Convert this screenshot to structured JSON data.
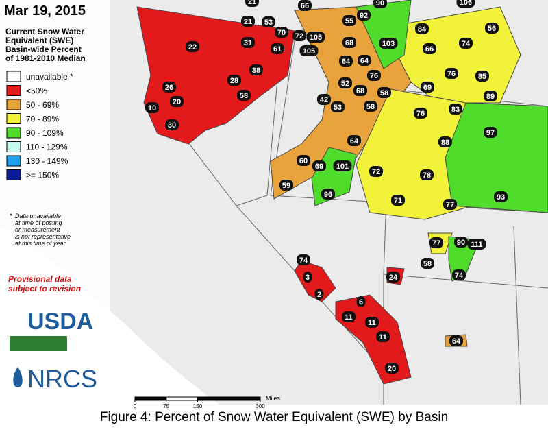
{
  "map": {
    "date": "Mar 19, 2015",
    "legend": {
      "title": [
        "Current Snow Water",
        "Equivalent (SWE)",
        "Basin-wide Percent",
        "of 1981-2010 Median"
      ],
      "items": [
        {
          "label": "unavailable *",
          "color": "#ffffff"
        },
        {
          "label": "<50%",
          "color": "#e31a1c"
        },
        {
          "label": "50 - 69%",
          "color": "#e8a33c"
        },
        {
          "label": "70 - 89%",
          "color": "#f2f23a"
        },
        {
          "label": "90 - 109%",
          "color": "#4fdc2a"
        },
        {
          "label": "110 - 129%",
          "color": "#c4fdf0"
        },
        {
          "label": "130 - 149%",
          "color": "#1ea0ee"
        },
        {
          "label": ">= 150%",
          "color": "#0b1a96"
        }
      ]
    },
    "footnote": {
      "marker": "*",
      "lines": [
        "Data unavailable",
        "at time of posting",
        "or measurement",
        "is not representative",
        "at this time of year"
      ]
    },
    "provisional": [
      "Provisional data",
      "subject to revision"
    ],
    "logos": [
      "USDA",
      "NRCS"
    ],
    "scale": {
      "ticks": [
        0,
        75,
        150,
        300
      ],
      "unit": "Miles"
    },
    "caption": "Figure 4: Percent of Snow Water Equivalent (SWE) by Basin",
    "basins": [
      21,
      66,
      90,
      106,
      92,
      55,
      53,
      21,
      22,
      31,
      70,
      72,
      105,
      105,
      61,
      68,
      103,
      84,
      66,
      74,
      56,
      38,
      28,
      64,
      64,
      76,
      76,
      85,
      26,
      58,
      52,
      68,
      58,
      69,
      89,
      20,
      10,
      42,
      53,
      58,
      76,
      83,
      30,
      97,
      88,
      64,
      60,
      69,
      101,
      72,
      78,
      59,
      96,
      71,
      77,
      93,
      77,
      90,
      111,
      74,
      58,
      3,
      24,
      74,
      2,
      6,
      11,
      11,
      11,
      64,
      20
    ]
  }
}
